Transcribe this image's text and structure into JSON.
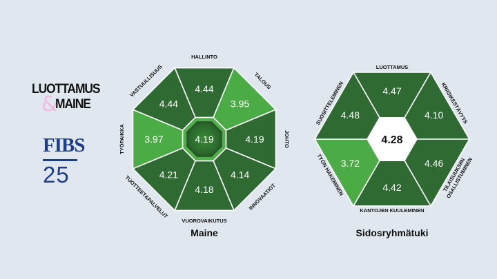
{
  "brand": {
    "line1": "LUOTTAMUS",
    "ampersand": "&",
    "line2": "MAINE",
    "fibs_top": "FIBS",
    "fibs_bottom": "25"
  },
  "colors": {
    "background": "#e1e7ef",
    "dark_green": "#2f6a32",
    "light_green": "#4bab44",
    "ring": "#52ad4b"
  },
  "chart_data": [
    {
      "type": "octagon-radial",
      "title": "Maine",
      "center": {
        "value": "4.19"
      },
      "segments": [
        {
          "label": "HALLINTO",
          "value": "4.44",
          "highlight": false
        },
        {
          "label": "TALOUS",
          "value": "3.95",
          "highlight": true
        },
        {
          "label": "JOHTO",
          "value": "4.19",
          "highlight": false
        },
        {
          "label": "INNOVAATIOT",
          "value": "4.14",
          "highlight": false
        },
        {
          "label": "VUOROVAIKUTUS",
          "value": "4.18",
          "highlight": false
        },
        {
          "label": "TUOTTEET&PALVELUT",
          "value": "4.21",
          "highlight": false
        },
        {
          "label": "TYÖPAIKKA",
          "value": "3.97",
          "highlight": true
        },
        {
          "label": "VASTUULLISUUS",
          "value": "4.44",
          "highlight": false
        }
      ]
    },
    {
      "type": "hexagon-radial",
      "title": "Sidosryhmätuki",
      "center": {
        "value": "4.28"
      },
      "segments": [
        {
          "label": "LUOTTAMUS",
          "value": "4.47",
          "highlight": false
        },
        {
          "label": "KRIISIKESTÄVYYS",
          "value": "4.10",
          "highlight": false
        },
        {
          "label": "TILAISUUKSIIN OSALLISTUMINEN",
          "value": "4.46",
          "highlight": false
        },
        {
          "label": "KANTOJEN KUULEMINEN",
          "value": "4.42",
          "highlight": false
        },
        {
          "label": "TYÖN HAKEMINEN",
          "value": "3.72",
          "highlight": true
        },
        {
          "label": "SUOSITTELEMINEN",
          "value": "4.48",
          "highlight": false
        }
      ]
    }
  ]
}
